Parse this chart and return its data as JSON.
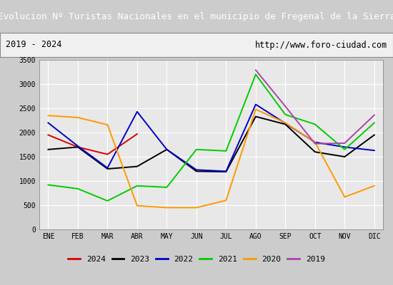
{
  "title": "Evolucion Nº Turistas Nacionales en el municipio de Fregenal de la Sierra",
  "subtitle_left": "2019 - 2024",
  "subtitle_right": "http://www.foro-ciudad.com",
  "title_bg": "#4a8fd4",
  "title_color": "white",
  "plot_bg": "#e8e8e8",
  "months": [
    "ENE",
    "FEB",
    "MAR",
    "ABR",
    "MAY",
    "JUN",
    "JUL",
    "AGO",
    "SEP",
    "OCT",
    "NOV",
    "DIC"
  ],
  "ylim": [
    0,
    3500
  ],
  "yticks": [
    0,
    500,
    1000,
    1500,
    2000,
    2500,
    3000,
    3500
  ],
  "series": {
    "2024": {
      "color": "#dd0000",
      "data": [
        1950,
        1700,
        1550,
        1970,
        null,
        null,
        null,
        null,
        null,
        null,
        null,
        null
      ]
    },
    "2023": {
      "color": "#000000",
      "data": [
        1650,
        1700,
        1250,
        1300,
        1650,
        1200,
        1190,
        2330,
        2170,
        1600,
        1500,
        1950
      ]
    },
    "2022": {
      "color": "#0000cc",
      "data": [
        2200,
        1720,
        1270,
        2430,
        1650,
        1230,
        1200,
        2580,
        2190,
        1800,
        1700,
        1630
      ]
    },
    "2021": {
      "color": "#00cc00",
      "data": [
        920,
        840,
        590,
        900,
        870,
        1650,
        1620,
        3200,
        2370,
        2170,
        1650,
        2200
      ]
    },
    "2020": {
      "color": "#ff9900",
      "data": [
        2350,
        2310,
        2160,
        490,
        450,
        450,
        600,
        2480,
        2200,
        1800,
        670,
        900
      ]
    },
    "2019": {
      "color": "#aa44aa",
      "data": [
        null,
        null,
        null,
        null,
        null,
        null,
        null,
        3290,
        2540,
        1770,
        1780,
        2360
      ]
    }
  }
}
